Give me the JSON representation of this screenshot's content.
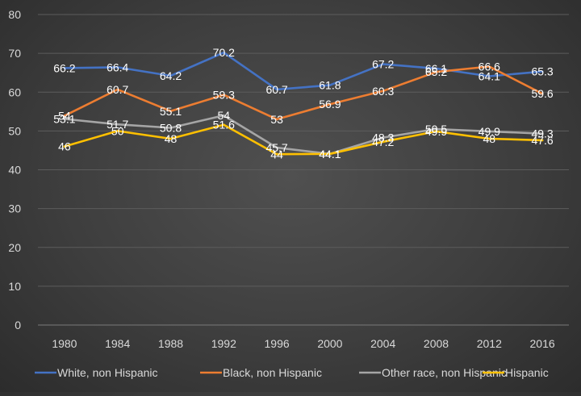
{
  "chart_data": {
    "type": "line",
    "title": "",
    "xlabel": "",
    "ylabel": "",
    "categories": [
      "1980",
      "1984",
      "1988",
      "1992",
      "1996",
      "2000",
      "2004",
      "2008",
      "2012",
      "2016"
    ],
    "ylim": [
      0,
      80
    ],
    "yticks": [
      "0",
      "10",
      "20",
      "30",
      "40",
      "50",
      "60",
      "70",
      "80"
    ],
    "grid": "horizontal",
    "legend_position": "bottom",
    "series": [
      {
        "name": "White, non Hispanic",
        "color": "#4472C4",
        "values": [
          66.2,
          66.4,
          64.2,
          70.2,
          60.7,
          61.8,
          67.2,
          66.1,
          64.1,
          65.3
        ],
        "labels": [
          "66.2",
          "66.4",
          "64.2",
          "70.2",
          "60.7",
          "61.8",
          "67.2",
          "66.1",
          "64.1",
          "65.3"
        ]
      },
      {
        "name": "Black, non Hispanic",
        "color": "#ED7D31",
        "values": [
          53.9,
          60.7,
          55.1,
          59.3,
          53,
          56.9,
          60.3,
          65.2,
          66.6,
          59.6
        ],
        "labels": [
          "54",
          "60.7",
          "55.1",
          "59.3",
          "53",
          "56.9",
          "60.3",
          "65.2",
          "66.6",
          "59.6"
        ]
      },
      {
        "name": "Other race, non Hispanic",
        "color": "#A5A5A5",
        "values": [
          53.1,
          51.7,
          50.8,
          54,
          45.7,
          44.1,
          48.3,
          50.5,
          49.9,
          49.3
        ],
        "labels": [
          "53.1",
          "51.7",
          "50.8",
          "54",
          "45.7",
          "44.1",
          "48.3",
          "50.5",
          "49.9",
          "49.3"
        ]
      },
      {
        "name": "Hispanic",
        "color": "#FFC000",
        "values": [
          46,
          50,
          48,
          51.6,
          44,
          44.1,
          47.2,
          49.9,
          48,
          47.6
        ],
        "labels": [
          "46",
          "50",
          "48",
          "51.6",
          "44",
          "44.1",
          "47.2",
          "49.9",
          "48",
          "47.6"
        ]
      }
    ]
  }
}
